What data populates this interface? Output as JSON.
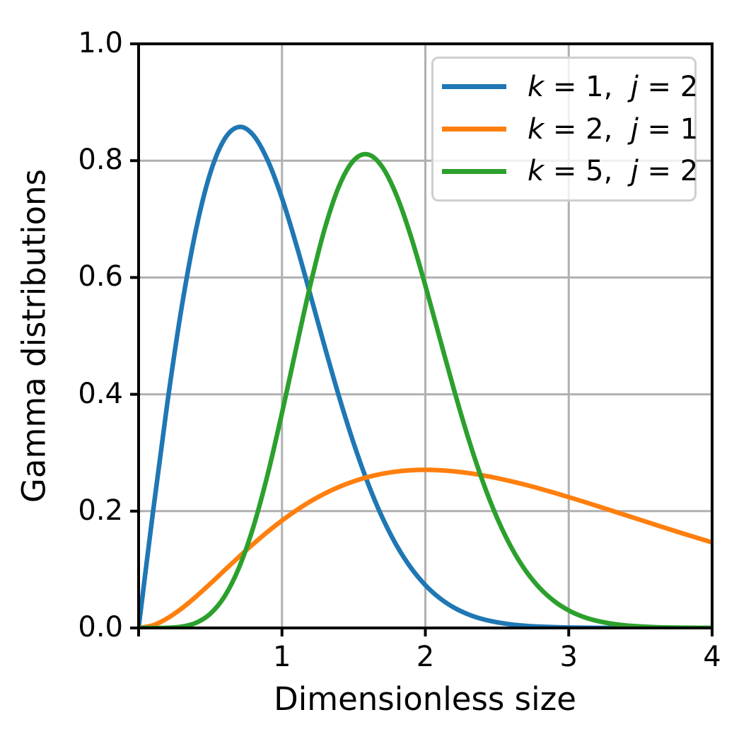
{
  "chart_data": {
    "type": "line",
    "title": "",
    "xlabel": "Dimensionless size",
    "ylabel": "Gamma distributions",
    "xlim": [
      0,
      4
    ],
    "ylim": [
      0,
      1
    ],
    "grid": true,
    "grid_color": "#b0b0b0",
    "axis_color": "#000000",
    "legend_position": "upper right",
    "xticks": {
      "values": [
        0,
        1,
        2,
        3,
        4
      ],
      "labels": [
        "",
        "1",
        "2",
        "3",
        "4"
      ]
    },
    "yticks": {
      "values": [
        0,
        0.2,
        0.4,
        0.6,
        0.8,
        1.0
      ],
      "labels": [
        "0.0",
        "0.2",
        "0.4",
        "0.6",
        "0.8",
        "1.0"
      ]
    },
    "x": [
      0,
      0.1,
      0.2,
      0.3,
      0.4,
      0.5,
      0.6,
      0.7,
      0.8,
      0.9,
      1,
      1.1,
      1.2,
      1.3,
      1.4,
      1.5,
      1.6,
      1.7,
      1.8,
      1.9,
      2,
      2.1,
      2.2,
      2.3,
      2.4,
      2.5,
      2.6,
      2.7,
      2.8,
      2.9,
      3,
      3.1,
      3.2,
      3.3,
      3.4,
      3.5,
      3.6,
      3.7,
      3.8,
      3.9,
      4
    ],
    "series": [
      {
        "name": "k = 1,  j = 2",
        "color": "#1f77b4",
        "peak": {
          "x": 0.71,
          "y": 0.858
        },
        "y": [
          0,
          0.198,
          0.3843,
          0.5484,
          0.6817,
          0.7788,
          0.8372,
          0.8577,
          0.8437,
          0.8007,
          0.7358,
          0.656,
          0.5686,
          0.4798,
          0.3944,
          0.3162,
          0.2474,
          0.189,
          0.141,
          0.1028,
          0.0733,
          0.0511,
          0.0348,
          0.0232,
          0.0151,
          0.0097,
          0.006,
          0.0037,
          0.0022,
          0.0013,
          0.0007,
          0.0004,
          0.0002,
          0.0001,
          0.0001,
          0,
          0,
          0,
          0,
          0,
          0
        ]
      },
      {
        "name": "k = 2,  j = 1",
        "color": "#ff7f0e",
        "peak": {
          "x": 2.0,
          "y": 0.271
        },
        "y": [
          0,
          0.0045,
          0.0164,
          0.0333,
          0.0536,
          0.0758,
          0.0988,
          0.1217,
          0.1438,
          0.1647,
          0.1839,
          0.2014,
          0.2169,
          0.2303,
          0.2417,
          0.251,
          0.2584,
          0.264,
          0.2678,
          0.27,
          0.2707,
          0.27,
          0.2681,
          0.2652,
          0.2613,
          0.2565,
          0.251,
          0.245,
          0.2384,
          0.2314,
          0.224,
          0.2165,
          0.2087,
          0.2008,
          0.1929,
          0.185,
          0.1771,
          0.1692,
          0.1615,
          0.1539,
          0.1465
        ]
      },
      {
        "name": "k = 5,  j = 2",
        "color": "#2ca02c",
        "peak": {
          "x": 1.58,
          "y": 0.811
        },
        "y": [
          0,
          0,
          0.0003,
          0.0022,
          0.0087,
          0.0243,
          0.0542,
          0.103,
          0.1728,
          0.2627,
          0.3679,
          0.4802,
          0.5896,
          0.6851,
          0.7576,
          0.8004,
          0.8106,
          0.7891,
          0.74,
          0.6698,
          0.5861,
          0.4964,
          0.4075,
          0.3245,
          0.2509,
          0.1885,
          0.1377,
          0.0979,
          0.0678,
          0.0457,
          0.03,
          0.0192,
          0.012,
          0.0073,
          0.0043,
          0.0025,
          0.0014,
          0.0008,
          0.0004,
          0.0002,
          0.0001
        ]
      }
    ]
  }
}
